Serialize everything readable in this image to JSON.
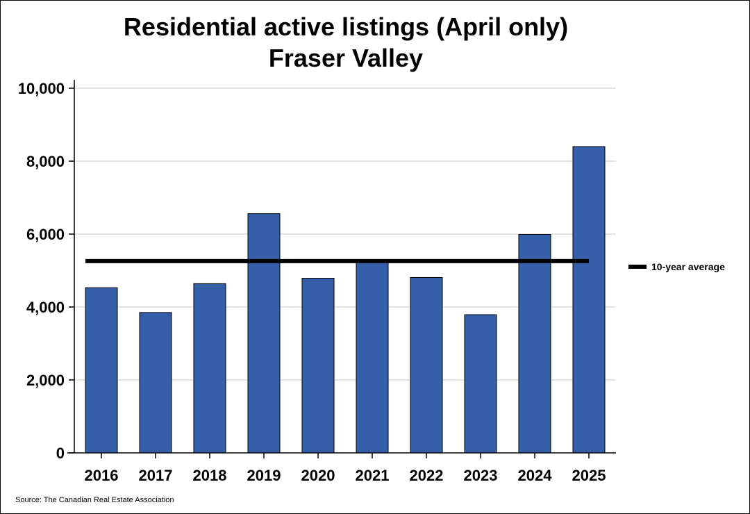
{
  "chart_data": {
    "type": "bar",
    "title": [
      "Residential active listings (April only)",
      "Fraser Valley"
    ],
    "xlabel": "",
    "ylabel": "",
    "categories": [
      "2016",
      "2017",
      "2018",
      "2019",
      "2020",
      "2021",
      "2022",
      "2023",
      "2024",
      "2025"
    ],
    "values": [
      4530,
      3850,
      4640,
      6560,
      4790,
      5230,
      4810,
      3790,
      5990,
      8400
    ],
    "ylim": [
      0,
      10000
    ],
    "yticks": [
      0,
      2000,
      4000,
      6000,
      8000,
      10000
    ],
    "ytick_labels": [
      "0",
      "2,000",
      "4,000",
      "6,000",
      "8,000",
      "10,000"
    ],
    "reference_line": {
      "label": "10-year average",
      "value": 5260
    },
    "grid": true,
    "legend_position": "right",
    "bar_color": "#355fa8",
    "line_color": "#000000",
    "source": "Source: The Canadian Real Estate Association"
  }
}
